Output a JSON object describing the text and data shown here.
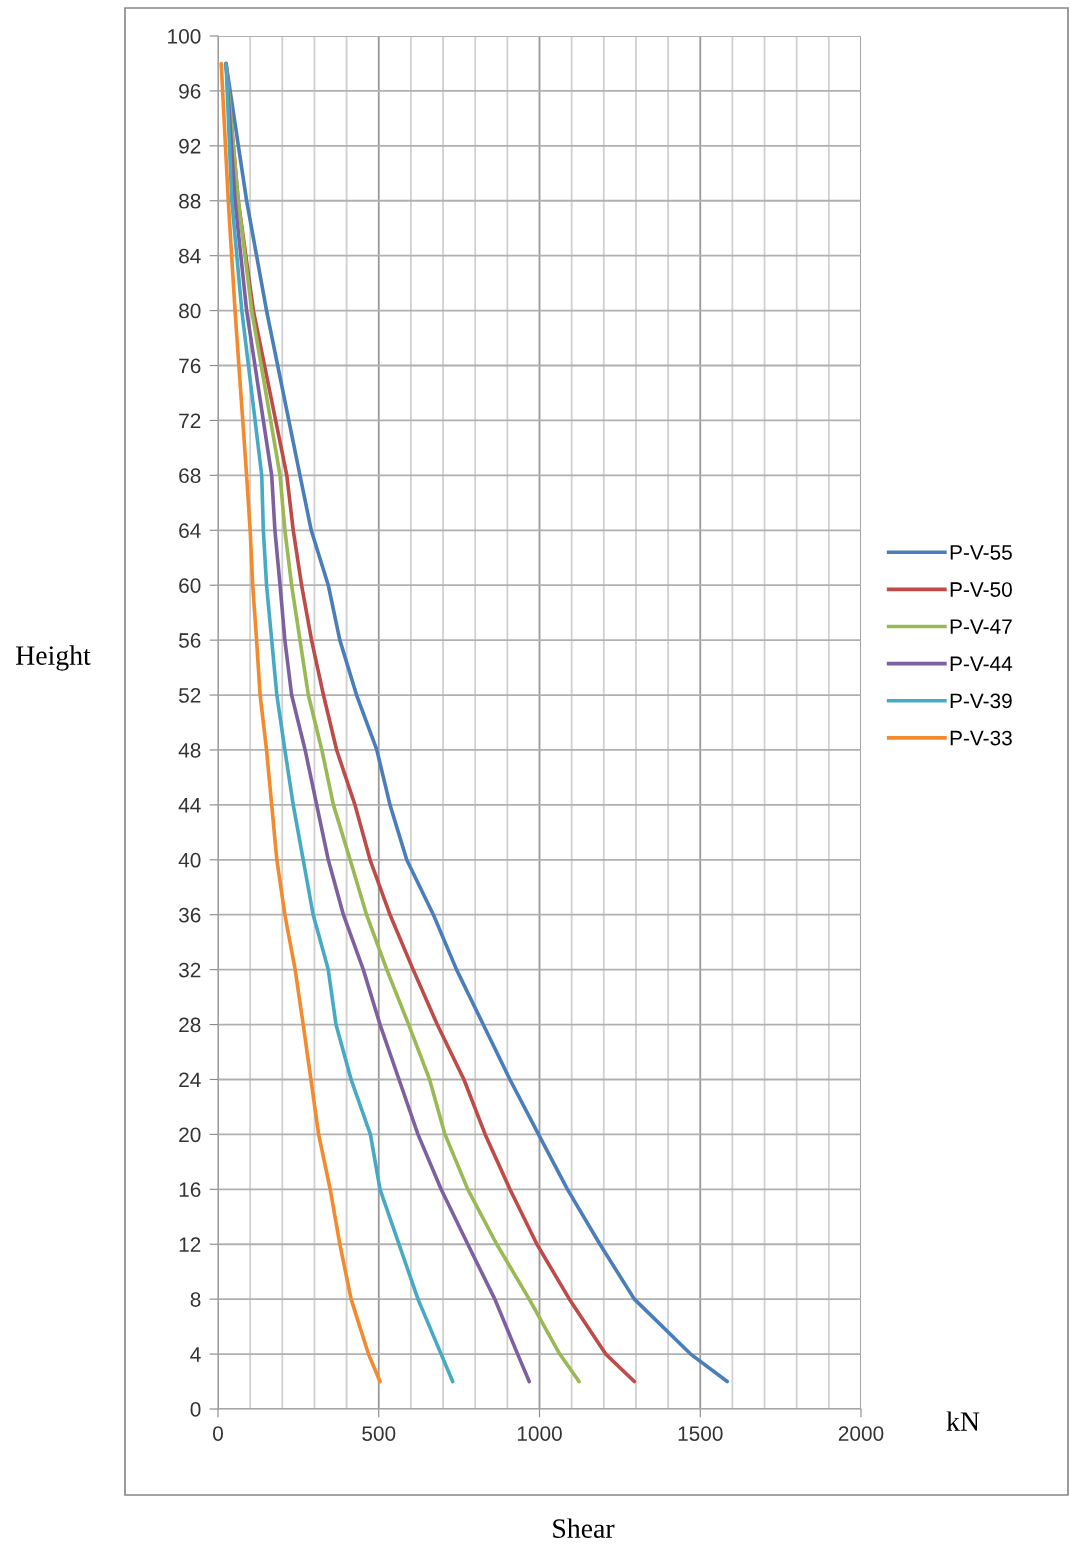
{
  "chart_data": {
    "type": "line",
    "xlabel": "Shear",
    "ylabel": "Height",
    "annotations": [
      "kN"
    ],
    "xlim": [
      0,
      2000
    ],
    "ylim": [
      0,
      100
    ],
    "xticks": [
      0,
      {
        "value": 100,
        "label": null
      },
      {
        "value": 200,
        "label": null
      },
      {
        "value": 300,
        "label": null
      },
      {
        "value": 400,
        "label": null
      },
      500,
      {
        "value": 600,
        "label": null
      },
      {
        "value": 700,
        "label": null
      },
      {
        "value": 800,
        "label": null
      },
      {
        "value": 900,
        "label": null
      },
      1000,
      {
        "value": 1100,
        "label": null
      },
      {
        "value": 1200,
        "label": null
      },
      {
        "value": 1300,
        "label": null
      },
      {
        "value": 1400,
        "label": null
      },
      1500,
      {
        "value": 1600,
        "label": null
      },
      {
        "value": 1700,
        "label": null
      },
      {
        "value": 1800,
        "label": null
      },
      {
        "value": 1900,
        "label": null
      },
      2000
    ],
    "yticks": [
      0,
      4,
      8,
      12,
      16,
      20,
      24,
      28,
      32,
      36,
      40,
      44,
      48,
      52,
      56,
      60,
      64,
      68,
      72,
      76,
      80,
      84,
      88,
      92,
      96,
      100
    ],
    "grid": true,
    "legend": "right",
    "marker": "none",
    "line_style": "solid",
    "series": [
      {
        "name": "P-V-55",
        "color": "#4a7ebb",
        "x": [
          25,
          89,
          151,
          255,
          290,
          343,
          379,
          431,
          494,
          535,
          587,
          670,
          742,
          825,
          908,
          997,
          1087,
          1188,
          1295,
          1470,
          1584
        ],
        "values": [
          98,
          88,
          80,
          68,
          64,
          60,
          56,
          52,
          48,
          44,
          40,
          36,
          32,
          28,
          24,
          20,
          16,
          12,
          8,
          4,
          2
        ]
      },
      {
        "name": "P-V-50",
        "color": "#be4b48",
        "x": [
          25,
          63,
          110,
          214,
          234,
          260,
          291,
          328,
          369,
          426,
          473,
          535,
          607,
          682,
          765,
          831,
          908,
          992,
          1093,
          1206,
          1295
        ],
        "values": [
          98,
          88,
          80,
          68,
          64,
          60,
          56,
          52,
          48,
          44,
          40,
          36,
          32,
          28,
          24,
          20,
          16,
          12,
          8,
          4,
          2
        ]
      },
      {
        "name": "P-V-47",
        "color": "#98b954",
        "x": [
          25,
          63,
          105,
          193,
          208,
          229,
          255,
          281,
          323,
          359,
          411,
          462,
          525,
          593,
          658,
          706,
          777,
          867,
          968,
          1063,
          1123
        ],
        "values": [
          98,
          88,
          80,
          68,
          64,
          60,
          56,
          52,
          48,
          44,
          40,
          36,
          32,
          28,
          24,
          20,
          16,
          12,
          8,
          4,
          2
        ]
      },
      {
        "name": "P-V-44",
        "color": "#7d60a0",
        "x": [
          25,
          53,
          89,
          167,
          177,
          193,
          208,
          229,
          271,
          307,
          343,
          390,
          452,
          504,
          563,
          622,
          694,
          777,
          861,
          932,
          968
        ],
        "values": [
          98,
          88,
          80,
          68,
          64,
          60,
          56,
          52,
          48,
          44,
          40,
          36,
          32,
          28,
          24,
          20,
          16,
          12,
          8,
          4,
          2
        ]
      },
      {
        "name": "P-V-39",
        "color": "#46aac5",
        "x": [
          25,
          43,
          74,
          136,
          141,
          151,
          167,
          183,
          208,
          234,
          265,
          296,
          343,
          367,
          414,
          474,
          504,
          563,
          622,
          694,
          730
        ],
        "values": [
          98,
          88,
          80,
          68,
          64,
          60,
          56,
          52,
          48,
          44,
          40,
          36,
          32,
          28,
          24,
          20,
          16,
          12,
          8,
          4,
          2
        ]
      },
      {
        "name": "P-V-33",
        "color": "#f38a2d",
        "x": [
          10,
          32,
          53,
          89,
          100,
          108,
          120,
          131,
          151,
          167,
          183,
          208,
          240,
          265,
          289,
          313,
          349,
          379,
          414,
          468,
          504
        ],
        "values": [
          98,
          88,
          80,
          68,
          64,
          60,
          56,
          52,
          48,
          44,
          40,
          36,
          32,
          28,
          24,
          20,
          16,
          12,
          8,
          4,
          2
        ]
      }
    ]
  }
}
